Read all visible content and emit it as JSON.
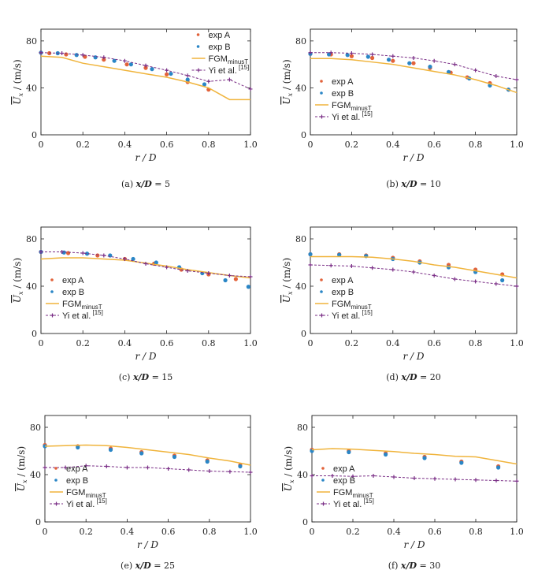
{
  "colors": {
    "expA": "#e2623a",
    "expB": "#2a86c6",
    "fgm": "#f0b43c",
    "yi": "#7a2e86",
    "axis": "#222222"
  },
  "ylabel": {
    "main": "U",
    "sub": "x",
    "unit": "/ (m/s)"
  },
  "xlabel": "r / D",
  "chart_data": [
    {
      "type": "line",
      "caption": "(a) x/D = 5",
      "caption_prefix": "(a)",
      "caption_var": "x/D",
      "caption_val": "= 5",
      "xlim": [
        0,
        1.0
      ],
      "ylim": [
        0,
        90
      ],
      "xticks": [
        0,
        0.2,
        0.4,
        0.6,
        0.8,
        1.0
      ],
      "yticks": [
        0,
        40,
        80
      ],
      "series": [
        {
          "name": "exp A",
          "kind": "points",
          "x": [
            0,
            0.04,
            0.12,
            0.21,
            0.3,
            0.41,
            0.5,
            0.6,
            0.7,
            0.8
          ],
          "y": [
            70,
            69.5,
            68.5,
            66.5,
            64,
            60,
            57,
            51.5,
            45,
            38.5
          ]
        },
        {
          "name": "exp B",
          "kind": "points",
          "x": [
            0,
            0.08,
            0.17,
            0.26,
            0.35,
            0.43,
            0.53,
            0.62,
            0.7,
            0.78
          ],
          "y": [
            70,
            69.5,
            68,
            66,
            63,
            60,
            56,
            52,
            47,
            43
          ]
        },
        {
          "name": "FGM",
          "sub": "minusT",
          "kind": "line",
          "x": [
            0,
            0.1,
            0.2,
            0.3,
            0.4,
            0.5,
            0.6,
            0.7,
            0.8,
            0.9,
            1.0
          ],
          "y": [
            67,
            66,
            61,
            58,
            55,
            52,
            49,
            45,
            40,
            30,
            30
          ]
        },
        {
          "name": "Yi et al.",
          "sup": "[15]",
          "kind": "marked-line",
          "x": [
            0,
            0.1,
            0.2,
            0.3,
            0.4,
            0.5,
            0.6,
            0.7,
            0.8,
            0.9,
            1.0
          ],
          "y": [
            70,
            69.5,
            68,
            66,
            63,
            59,
            55,
            50.5,
            45.5,
            47,
            39
          ]
        }
      ],
      "legend": "top-right"
    },
    {
      "type": "line",
      "caption": "(b) x/D = 10",
      "caption_prefix": "(b)",
      "caption_var": "x/D",
      "caption_val": "= 10",
      "xlim": [
        0,
        1.0
      ],
      "ylim": [
        0,
        90
      ],
      "xticks": [
        0,
        0.2,
        0.4,
        0.6,
        0.8,
        1.0
      ],
      "yticks": [
        0,
        40,
        80
      ],
      "series": [
        {
          "name": "exp A",
          "kind": "points",
          "x": [
            0,
            0.1,
            0.2,
            0.3,
            0.4,
            0.5,
            0.58,
            0.68,
            0.76,
            0.87,
            0.96
          ],
          "y": [
            69,
            68.5,
            67,
            65.5,
            63,
            61,
            57,
            53,
            49,
            44,
            38.5
          ]
        },
        {
          "name": "exp B",
          "kind": "points",
          "x": [
            0,
            0.09,
            0.18,
            0.28,
            0.38,
            0.48,
            0.58,
            0.67,
            0.77,
            0.87,
            0.96
          ],
          "y": [
            69,
            68.5,
            68,
            66.5,
            64,
            61,
            58,
            53.5,
            48,
            42,
            38.5
          ]
        },
        {
          "name": "FGM",
          "sub": "minusT",
          "kind": "line",
          "x": [
            0,
            0.1,
            0.2,
            0.3,
            0.4,
            0.5,
            0.6,
            0.7,
            0.8,
            0.9,
            1.0
          ],
          "y": [
            65,
            65,
            64,
            62,
            60,
            57,
            54,
            51,
            47,
            42,
            36
          ]
        },
        {
          "name": "Yi et al.",
          "sup": "[15]",
          "kind": "marked-line",
          "x": [
            0,
            0.1,
            0.2,
            0.3,
            0.4,
            0.5,
            0.6,
            0.7,
            0.8,
            0.9,
            1.0
          ],
          "y": [
            70,
            70,
            69.5,
            68.5,
            67,
            65.5,
            63,
            60,
            55,
            50,
            47
          ]
        }
      ],
      "legend": "bottom-left"
    },
    {
      "type": "line",
      "caption": "(c) x/D = 15",
      "caption_prefix": "(c)",
      "caption_var": "x/D",
      "caption_val": "= 15",
      "xlim": [
        0,
        1.0
      ],
      "ylim": [
        0,
        90
      ],
      "xticks": [
        0,
        0.2,
        0.4,
        0.6,
        0.8,
        1.0
      ],
      "yticks": [
        0,
        40,
        80
      ],
      "series": [
        {
          "name": "exp A",
          "kind": "points",
          "x": [
            0,
            0.13,
            0.27,
            0.4,
            0.54,
            0.67,
            0.8,
            0.93
          ],
          "y": [
            69,
            68,
            66,
            63,
            59,
            54,
            50,
            46
          ]
        },
        {
          "name": "exp B",
          "kind": "points",
          "x": [
            0,
            0.11,
            0.22,
            0.33,
            0.44,
            0.55,
            0.66,
            0.77,
            0.88,
            0.99
          ],
          "y": [
            69,
            68.5,
            67.5,
            66,
            63,
            60,
            56,
            51,
            45,
            39.5
          ]
        },
        {
          "name": "FGM",
          "sub": "minusT",
          "kind": "line",
          "x": [
            0,
            0.1,
            0.2,
            0.3,
            0.4,
            0.5,
            0.6,
            0.7,
            0.8,
            0.9,
            1.0
          ],
          "y": [
            63,
            64,
            64,
            63,
            62,
            59.5,
            57,
            54,
            51.5,
            49,
            47
          ]
        },
        {
          "name": "Yi et al.",
          "sup": "[15]",
          "kind": "marked-line",
          "x": [
            0,
            0.1,
            0.2,
            0.3,
            0.4,
            0.5,
            0.6,
            0.7,
            0.8,
            0.9,
            1.0
          ],
          "y": [
            69,
            69,
            68,
            66,
            63,
            59,
            56,
            53,
            51,
            49,
            48
          ]
        }
      ],
      "legend": "bottom-left"
    },
    {
      "type": "line",
      "caption": "(d) x/D = 20",
      "caption_prefix": "(d)",
      "caption_var": "x/D",
      "caption_val": "= 20",
      "xlim": [
        0,
        1.0
      ],
      "ylim": [
        0,
        90
      ],
      "xticks": [
        0,
        0.2,
        0.4,
        0.6,
        0.8,
        1.0
      ],
      "yticks": [
        0,
        40,
        80
      ],
      "series": [
        {
          "name": "exp A",
          "kind": "points",
          "x": [
            0,
            0.14,
            0.27,
            0.4,
            0.53,
            0.67,
            0.8,
            0.93
          ],
          "y": [
            67,
            67,
            66,
            64,
            61,
            58,
            54,
            50
          ]
        },
        {
          "name": "exp B",
          "kind": "points",
          "x": [
            0,
            0.14,
            0.27,
            0.4,
            0.53,
            0.67,
            0.8,
            0.93
          ],
          "y": [
            67,
            66.5,
            65.5,
            63,
            60,
            56,
            52,
            45
          ]
        },
        {
          "name": "FGM",
          "sub": "minusT",
          "kind": "line",
          "x": [
            0,
            0.1,
            0.2,
            0.3,
            0.4,
            0.5,
            0.6,
            0.7,
            0.8,
            0.9,
            1.0
          ],
          "y": [
            65,
            65,
            65,
            64.5,
            63,
            61,
            58,
            56,
            53,
            50,
            47
          ]
        },
        {
          "name": "Yi et al.",
          "sup": "[15]",
          "kind": "marked-line",
          "x": [
            0,
            0.1,
            0.2,
            0.3,
            0.4,
            0.5,
            0.6,
            0.7,
            0.8,
            0.9,
            1.0
          ],
          "y": [
            58,
            57.5,
            57,
            55.5,
            54,
            52,
            49,
            46,
            44,
            42,
            40
          ]
        }
      ],
      "legend": "bottom-left"
    },
    {
      "type": "line",
      "caption": "(e) x/D = 25",
      "caption_prefix": "(e)",
      "caption_var": "x/D",
      "caption_val": "= 25",
      "xlim": [
        0,
        1.0
      ],
      "ylim": [
        0,
        90
      ],
      "xticks": [
        0,
        0.2,
        0.4,
        0.6,
        0.8,
        1.0
      ],
      "yticks": [
        0,
        40,
        80
      ],
      "series": [
        {
          "name": "exp A",
          "kind": "points",
          "x": [
            0,
            0.16,
            0.32,
            0.47,
            0.63,
            0.79,
            0.95
          ],
          "y": [
            65,
            64,
            62,
            59,
            56,
            52,
            48
          ]
        },
        {
          "name": "exp B",
          "kind": "points",
          "x": [
            0,
            0.16,
            0.32,
            0.47,
            0.63,
            0.79,
            0.95
          ],
          "y": [
            64,
            63,
            61,
            58,
            55,
            51,
            47
          ]
        },
        {
          "name": "FGM",
          "sub": "minusT",
          "kind": "line",
          "x": [
            0,
            0.1,
            0.2,
            0.3,
            0.4,
            0.5,
            0.6,
            0.7,
            0.8,
            0.9,
            1.0
          ],
          "y": [
            64,
            64.5,
            65,
            64.5,
            63,
            61,
            59,
            57,
            54,
            51.5,
            48
          ]
        },
        {
          "name": "Yi et al.",
          "sup": "[15]",
          "kind": "marked-line",
          "x": [
            0,
            0.1,
            0.2,
            0.3,
            0.4,
            0.5,
            0.6,
            0.7,
            0.8,
            0.9,
            1.0
          ],
          "y": [
            46,
            46,
            47.5,
            47,
            46,
            46,
            45,
            44,
            43,
            42.5,
            42
          ]
        }
      ],
      "legend": "bottom-left"
    },
    {
      "type": "line",
      "caption": "(f) x/D = 30",
      "caption_prefix": "(f)",
      "caption_var": "x/D",
      "caption_val": "= 30",
      "xlim": [
        0,
        1.0
      ],
      "ylim": [
        0,
        90
      ],
      "xticks": [
        0,
        0.2,
        0.4,
        0.6,
        0.8,
        1.0
      ],
      "yticks": [
        0,
        40,
        80
      ],
      "series": [
        {
          "name": "exp A",
          "kind": "points",
          "x": [
            0,
            0.18,
            0.36,
            0.55,
            0.73,
            0.91
          ],
          "y": [
            61,
            60,
            58,
            55,
            51,
            47
          ]
        },
        {
          "name": "exp B",
          "kind": "points",
          "x": [
            0,
            0.18,
            0.36,
            0.55,
            0.73,
            0.91
          ],
          "y": [
            60,
            59,
            57,
            54,
            50,
            46
          ]
        },
        {
          "name": "FGM",
          "sub": "minusT",
          "kind": "line",
          "x": [
            0,
            0.1,
            0.2,
            0.3,
            0.4,
            0.5,
            0.6,
            0.7,
            0.8,
            0.9,
            1.0
          ],
          "y": [
            61,
            62,
            61.5,
            60.5,
            59.5,
            58,
            57,
            55.5,
            55,
            52,
            49
          ]
        },
        {
          "name": "Yi et al.",
          "sup": "[15]",
          "kind": "marked-line",
          "x": [
            0,
            0.1,
            0.2,
            0.3,
            0.4,
            0.5,
            0.6,
            0.7,
            0.8,
            0.9,
            1.0
          ],
          "y": [
            39,
            39,
            38.5,
            39,
            38,
            37,
            36.5,
            36,
            35.5,
            35,
            34.5
          ]
        }
      ],
      "legend": "bottom-left"
    }
  ]
}
